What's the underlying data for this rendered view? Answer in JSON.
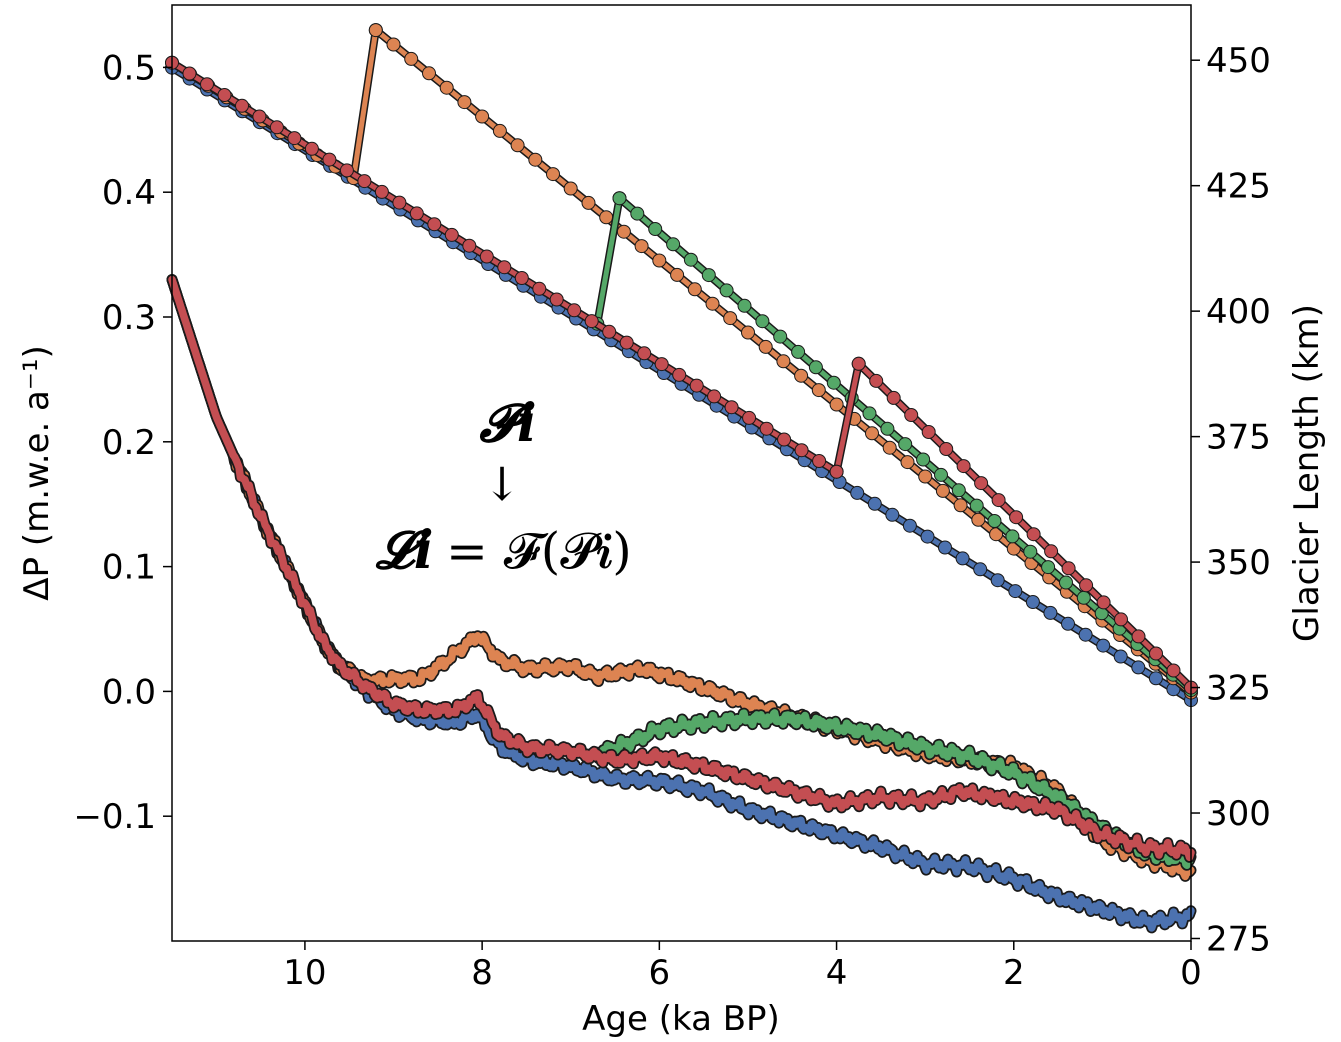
{
  "chart_data": {
    "type": "line",
    "title": "",
    "xlabel": "Age (ka BP)",
    "ylabel_left": "ΔP (m.w.e. a⁻¹)",
    "ylabel_right": "Glacier Length (km)",
    "xlim": [
      11.5,
      0
    ],
    "ylim_left": [
      -0.2,
      0.55
    ],
    "ylim_right": [
      274.5,
      461
    ],
    "x_ticks": [
      10,
      8,
      6,
      4,
      2,
      0
    ],
    "x_tick_labels": [
      "10",
      "8",
      "6",
      "4",
      "2",
      "0"
    ],
    "y_left_ticks": [
      0.5,
      0.4,
      0.3,
      0.2,
      0.1,
      0.0,
      -0.1
    ],
    "y_left_tick_labels": [
      "0.5",
      "0.4",
      "0.3",
      "0.2",
      "0.1",
      "0.0",
      "−0.1"
    ],
    "y_right_ticks": [
      450,
      425,
      400,
      375,
      350,
      325,
      300,
      275
    ],
    "y_right_tick_labels": [
      "450",
      "425",
      "400",
      "375",
      "350",
      "325",
      "300",
      "275"
    ],
    "grid": false,
    "annotation": {
      "top": "𝓟𝒊",
      "arrow": "↓",
      "lhs": "𝓛𝒊",
      "rhs": "= 𝓕(𝓟𝒊)"
    },
    "colors": {
      "blue": "#4c72b0",
      "orange": "#dd8452",
      "green": "#55a868",
      "red": "#c44e52",
      "edge": "#1a1a1a"
    },
    "length_series": [
      {
        "color": "blue",
        "start_x": 11.5,
        "points": [
          [
            11.5,
            448.5
          ],
          [
            0,
            322.5
          ]
        ]
      },
      {
        "color": "orange",
        "start_x": 11.5,
        "points": [
          [
            11.5,
            449.5
          ],
          [
            9.45,
            426.5
          ],
          [
            9.2,
            456
          ],
          [
            0,
            324
          ]
        ]
      },
      {
        "color": "green",
        "start_x": 6.7,
        "points": [
          [
            6.7,
            397.5
          ],
          [
            6.45,
            422.5
          ],
          [
            0,
            324.5
          ]
        ]
      },
      {
        "color": "red",
        "start_x": 11.5,
        "points": [
          [
            11.5,
            449.5
          ],
          [
            4.0,
            368
          ],
          [
            3.75,
            389.5
          ],
          [
            0,
            325
          ]
        ]
      }
    ],
    "dp_series": [
      {
        "color": "blue",
        "points": [
          [
            11.5,
            0.33
          ],
          [
            11,
            0.22
          ],
          [
            10.5,
            0.14
          ],
          [
            10,
            0.07
          ],
          [
            9.8,
            0.04
          ],
          [
            9.6,
            0.02
          ],
          [
            9.3,
            0.0
          ],
          [
            9,
            -0.015
          ],
          [
            8.7,
            -0.022
          ],
          [
            8.3,
            -0.025
          ],
          [
            8.05,
            -0.018
          ],
          [
            7.8,
            -0.045
          ],
          [
            7.5,
            -0.055
          ],
          [
            7,
            -0.06
          ],
          [
            6.5,
            -0.07
          ],
          [
            6,
            -0.072
          ],
          [
            5.5,
            -0.08
          ],
          [
            5,
            -0.095
          ],
          [
            4.5,
            -0.105
          ],
          [
            4,
            -0.115
          ],
          [
            3.5,
            -0.125
          ],
          [
            3,
            -0.138
          ],
          [
            2.5,
            -0.14
          ],
          [
            2,
            -0.15
          ],
          [
            1.5,
            -0.165
          ],
          [
            1,
            -0.175
          ],
          [
            0.5,
            -0.185
          ],
          [
            0,
            -0.18
          ]
        ]
      },
      {
        "color": "orange",
        "points": [
          [
            11.5,
            0.33
          ],
          [
            11,
            0.22
          ],
          [
            10.5,
            0.14
          ],
          [
            10,
            0.07
          ],
          [
            9.8,
            0.04
          ],
          [
            9.6,
            0.02
          ],
          [
            9.3,
            0.008
          ],
          [
            9,
            0.01
          ],
          [
            8.7,
            0.01
          ],
          [
            8.4,
            0.025
          ],
          [
            8.05,
            0.045
          ],
          [
            7.8,
            0.025
          ],
          [
            7.5,
            0.018
          ],
          [
            7,
            0.02
          ],
          [
            6.7,
            0.012
          ],
          [
            6.2,
            0.018
          ],
          [
            5.8,
            0.01
          ],
          [
            5.3,
            -0.002
          ],
          [
            5,
            -0.01
          ],
          [
            4.5,
            -0.02
          ],
          [
            4,
            -0.03
          ],
          [
            3.5,
            -0.04
          ],
          [
            3,
            -0.05
          ],
          [
            2.5,
            -0.055
          ],
          [
            2,
            -0.06
          ],
          [
            1.5,
            -0.08
          ],
          [
            1,
            -0.12
          ],
          [
            0.5,
            -0.135
          ],
          [
            0,
            -0.145
          ]
        ]
      },
      {
        "color": "green",
        "points": [
          [
            6.7,
            -0.05
          ],
          [
            6.3,
            -0.04
          ],
          [
            6,
            -0.03
          ],
          [
            5.5,
            -0.025
          ],
          [
            5,
            -0.022
          ],
          [
            4.5,
            -0.022
          ],
          [
            4,
            -0.028
          ],
          [
            3.5,
            -0.035
          ],
          [
            3,
            -0.045
          ],
          [
            2.5,
            -0.052
          ],
          [
            2,
            -0.065
          ],
          [
            1.5,
            -0.085
          ],
          [
            1,
            -0.11
          ],
          [
            0.5,
            -0.13
          ],
          [
            0,
            -0.135
          ]
        ]
      },
      {
        "color": "red",
        "points": [
          [
            11.5,
            0.33
          ],
          [
            11,
            0.22
          ],
          [
            10.5,
            0.14
          ],
          [
            10,
            0.07
          ],
          [
            9.8,
            0.04
          ],
          [
            9.6,
            0.02
          ],
          [
            9.3,
            0.003
          ],
          [
            9,
            -0.01
          ],
          [
            8.7,
            -0.015
          ],
          [
            8.3,
            -0.015
          ],
          [
            8.05,
            -0.005
          ],
          [
            7.8,
            -0.035
          ],
          [
            7.5,
            -0.045
          ],
          [
            7,
            -0.048
          ],
          [
            6.5,
            -0.055
          ],
          [
            6,
            -0.052
          ],
          [
            5.5,
            -0.06
          ],
          [
            5,
            -0.07
          ],
          [
            4.5,
            -0.08
          ],
          [
            4,
            -0.09
          ],
          [
            3.5,
            -0.085
          ],
          [
            3,
            -0.088
          ],
          [
            2.6,
            -0.08
          ],
          [
            2.2,
            -0.085
          ],
          [
            2,
            -0.088
          ],
          [
            1.5,
            -0.095
          ],
          [
            1,
            -0.115
          ],
          [
            0.5,
            -0.125
          ],
          [
            0,
            -0.128
          ]
        ]
      }
    ]
  }
}
